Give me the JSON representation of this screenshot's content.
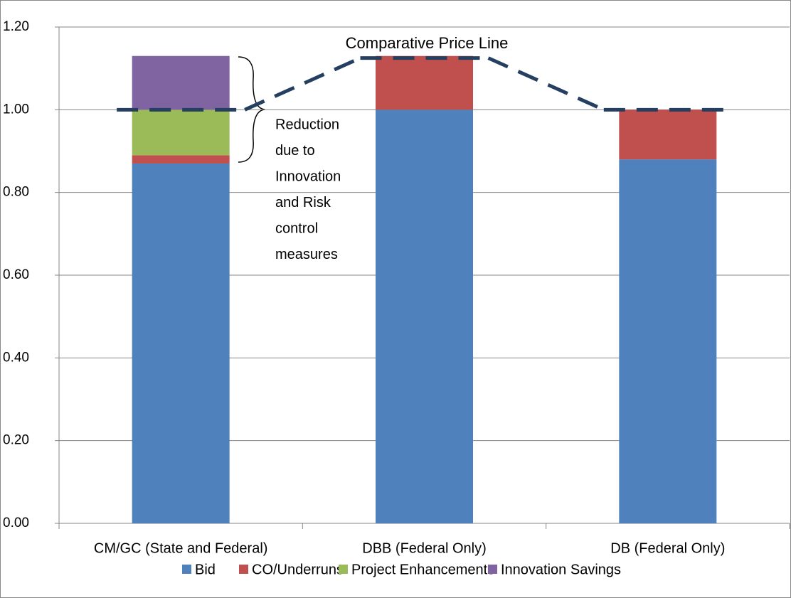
{
  "chart_data": {
    "type": "bar",
    "stacked": true,
    "categories": [
      "CM/GC (State and Federal)",
      "DBB (Federal Only)",
      "DB (Federal Only)"
    ],
    "series": [
      {
        "name": "Bid",
        "color": "#4f81bd",
        "values": [
          0.87,
          1.0,
          0.88
        ]
      },
      {
        "name": "CO/Underruns",
        "color": "#c0504d",
        "values": [
          0.02,
          0.13,
          0.12
        ]
      },
      {
        "name": "Project Enhancements",
        "color": "#9bbb59",
        "values": [
          0.11,
          0,
          0
        ]
      },
      {
        "name": "Innovation Savings",
        "color": "#8064a2",
        "values": [
          0.13,
          0,
          0
        ]
      }
    ],
    "line": {
      "name": "Comparative Price Line",
      "color": "#243f60",
      "values": [
        1.0,
        1.125,
        1.0
      ]
    },
    "annotation": [
      "Reduction",
      "due to",
      "Innovation",
      "and Risk",
      "control",
      "measures"
    ],
    "ylim": [
      0,
      1.2
    ],
    "yticks": [
      {
        "value": 0,
        "label": "0.00"
      },
      {
        "value": 0.2,
        "label": "0.20"
      },
      {
        "value": 0.4,
        "label": "0.40"
      },
      {
        "value": 0.6,
        "label": "0.60"
      },
      {
        "value": 0.8,
        "label": "0.80"
      },
      {
        "value": 1.0,
        "label": "1.00"
      },
      {
        "value": 1.2,
        "label": "1.20"
      }
    ],
    "grid": true,
    "legend": "bottom"
  }
}
